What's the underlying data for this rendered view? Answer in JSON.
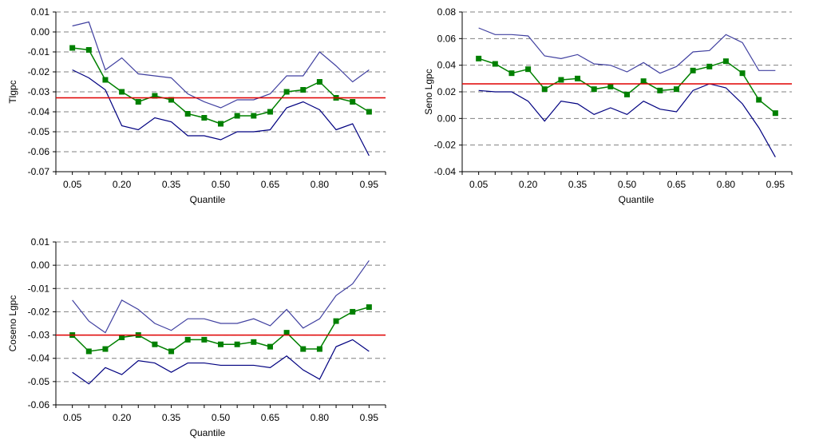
{
  "chart_data": [
    {
      "type": "line",
      "ylabel": "Tlgpc",
      "xlabel": "Quantile",
      "x": [
        0.05,
        0.1,
        0.15,
        0.2,
        0.25,
        0.3,
        0.35,
        0.4,
        0.45,
        0.5,
        0.55,
        0.6,
        0.65,
        0.7,
        0.75,
        0.8,
        0.85,
        0.9,
        0.95
      ],
      "xtick_labels": [
        "0.05",
        "0.20",
        "0.35",
        "0.50",
        "0.65",
        "0.80",
        "0.95"
      ],
      "ytick_labels": [
        "0.01",
        "0.00",
        "-0.01",
        "-0.02",
        "-0.03",
        "-0.04",
        "-0.05",
        "-0.06",
        "-0.07"
      ],
      "xlim": [
        0.0,
        1.0
      ],
      "ylim": [
        -0.07,
        0.01
      ],
      "grid": "horizontal-dashed",
      "series": [
        {
          "role": "upper-band",
          "color": "#4040a0",
          "marker": false,
          "values": [
            0.003,
            0.005,
            -0.019,
            -0.013,
            -0.021,
            -0.022,
            -0.023,
            -0.031,
            -0.035,
            -0.038,
            -0.034,
            -0.034,
            -0.031,
            -0.022,
            -0.022,
            -0.01,
            -0.017,
            -0.025,
            -0.019
          ]
        },
        {
          "role": "estimate",
          "color": "#008000",
          "marker": "square",
          "values": [
            -0.008,
            -0.009,
            -0.024,
            -0.03,
            -0.035,
            -0.032,
            -0.034,
            -0.041,
            -0.043,
            -0.046,
            -0.042,
            -0.042,
            -0.04,
            -0.03,
            -0.029,
            -0.025,
            -0.033,
            -0.035,
            -0.04
          ]
        },
        {
          "role": "lower-band",
          "color": "#000080",
          "marker": false,
          "values": [
            -0.019,
            -0.023,
            -0.029,
            -0.047,
            -0.049,
            -0.043,
            -0.045,
            -0.052,
            -0.052,
            -0.054,
            -0.05,
            -0.05,
            -0.049,
            -0.038,
            -0.035,
            -0.039,
            -0.049,
            -0.046,
            -0.062
          ]
        }
      ],
      "reference_line": {
        "color": "#e00000",
        "value": -0.033
      }
    },
    {
      "type": "line",
      "ylabel": "Seno Lgpc",
      "xlabel": "Quantile",
      "x": [
        0.05,
        0.1,
        0.15,
        0.2,
        0.25,
        0.3,
        0.35,
        0.4,
        0.45,
        0.5,
        0.55,
        0.6,
        0.65,
        0.7,
        0.75,
        0.8,
        0.85,
        0.9,
        0.95
      ],
      "xtick_labels": [
        "0.05",
        "0.20",
        "0.35",
        "0.50",
        "0.65",
        "0.80",
        "0.95"
      ],
      "ytick_labels": [
        "0.08",
        "0.06",
        "0.04",
        "0.02",
        "0.00",
        "-0.02",
        "-0.04"
      ],
      "xlim": [
        0.0,
        1.0
      ],
      "ylim": [
        -0.04,
        0.08
      ],
      "grid": "horizontal-dashed",
      "series": [
        {
          "role": "upper-band",
          "color": "#4040a0",
          "marker": false,
          "values": [
            0.068,
            0.063,
            0.063,
            0.062,
            0.047,
            0.045,
            0.048,
            0.041,
            0.04,
            0.035,
            0.042,
            0.034,
            0.039,
            0.05,
            0.051,
            0.063,
            0.057,
            0.036,
            0.036
          ]
        },
        {
          "role": "estimate",
          "color": "#008000",
          "marker": "square",
          "values": [
            0.045,
            0.041,
            0.034,
            0.037,
            0.022,
            0.029,
            0.03,
            0.022,
            0.024,
            0.018,
            0.028,
            0.021,
            0.022,
            0.036,
            0.039,
            0.043,
            0.034,
            0.014,
            0.004
          ]
        },
        {
          "role": "lower-band",
          "color": "#000080",
          "marker": false,
          "values": [
            0.021,
            0.02,
            0.02,
            0.013,
            -0.002,
            0.013,
            0.011,
            0.003,
            0.008,
            0.003,
            0.013,
            0.007,
            0.005,
            0.021,
            0.026,
            0.023,
            0.011,
            -0.007,
            -0.029
          ]
        }
      ],
      "reference_line": {
        "color": "#e00000",
        "value": 0.026
      }
    },
    {
      "type": "line",
      "ylabel": "Coseno Lgpc",
      "xlabel": "Quantile",
      "x": [
        0.05,
        0.1,
        0.15,
        0.2,
        0.25,
        0.3,
        0.35,
        0.4,
        0.45,
        0.5,
        0.55,
        0.6,
        0.65,
        0.7,
        0.75,
        0.8,
        0.85,
        0.9,
        0.95
      ],
      "xtick_labels": [
        "0.05",
        "0.20",
        "0.35",
        "0.50",
        "0.65",
        "0.80",
        "0.95"
      ],
      "ytick_labels": [
        "0.01",
        "0.00",
        "-0.01",
        "-0.02",
        "-0.03",
        "-0.04",
        "-0.05",
        "-0.06"
      ],
      "xlim": [
        0.0,
        1.0
      ],
      "ylim": [
        -0.06,
        0.01
      ],
      "grid": "horizontal-dashed",
      "series": [
        {
          "role": "upper-band",
          "color": "#4040a0",
          "marker": false,
          "values": [
            -0.015,
            -0.024,
            -0.029,
            -0.015,
            -0.019,
            -0.025,
            -0.028,
            -0.023,
            -0.023,
            -0.025,
            -0.025,
            -0.023,
            -0.026,
            -0.019,
            -0.027,
            -0.023,
            -0.013,
            -0.008,
            0.002
          ]
        },
        {
          "role": "estimate",
          "color": "#008000",
          "marker": "square",
          "values": [
            -0.03,
            -0.037,
            -0.036,
            -0.031,
            -0.03,
            -0.034,
            -0.037,
            -0.032,
            -0.032,
            -0.034,
            -0.034,
            -0.033,
            -0.035,
            -0.029,
            -0.036,
            -0.036,
            -0.024,
            -0.02,
            -0.018
          ]
        },
        {
          "role": "lower-band",
          "color": "#000080",
          "marker": false,
          "values": [
            -0.046,
            -0.051,
            -0.044,
            -0.047,
            -0.041,
            -0.042,
            -0.046,
            -0.042,
            -0.042,
            -0.043,
            -0.043,
            -0.043,
            -0.044,
            -0.039,
            -0.045,
            -0.049,
            -0.035,
            -0.032,
            -0.037
          ]
        }
      ],
      "reference_line": {
        "color": "#e00000",
        "value": -0.03
      }
    }
  ]
}
